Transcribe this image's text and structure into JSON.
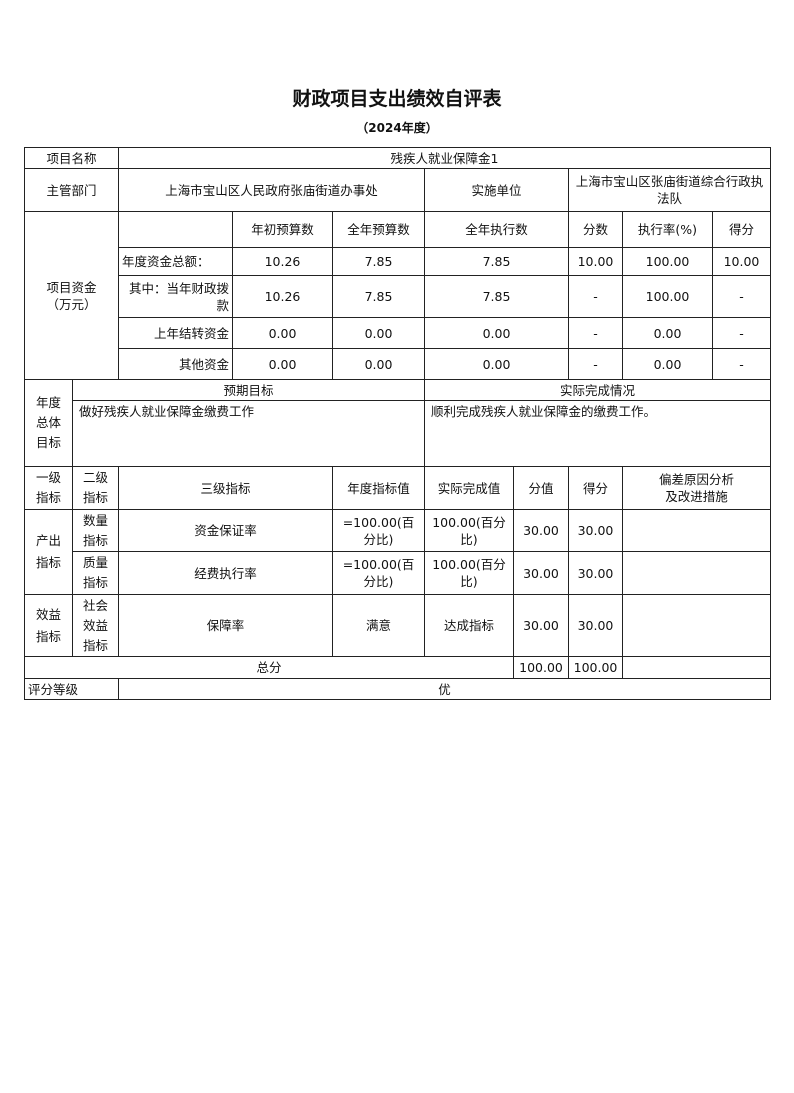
{
  "title": "财政项目支出绩效自评表",
  "subtitle": "（2024年度）",
  "project": {
    "name_label": "项目名称",
    "name": "残疾人就业保障金1",
    "dept_label": "主管部门",
    "dept": "上海市宝山区人民政府张庙街道办事处",
    "impl_label": "实施单位",
    "impl": "上海市宝山区张庙街道综合行政执法队"
  },
  "funds": {
    "label": "项目资金（万元）",
    "headers": [
      "年初预算数",
      "全年预算数",
      "全年执行数",
      "分数",
      "执行率(%)",
      "得分"
    ],
    "rows": [
      {
        "label": "年度资金总额：",
        "values": [
          "10.26",
          "7.85",
          "7.85",
          "10.00",
          "100.00",
          "10.00"
        ]
      },
      {
        "label": "其中：当年财政拨款",
        "values": [
          "10.26",
          "7.85",
          "7.85",
          "-",
          "100.00",
          "-"
        ]
      },
      {
        "label": "上年结转资金",
        "values": [
          "0.00",
          "0.00",
          "0.00",
          "-",
          "0.00",
          "-"
        ]
      },
      {
        "label": "其他资金",
        "values": [
          "0.00",
          "0.00",
          "0.00",
          "-",
          "0.00",
          "-"
        ]
      }
    ]
  },
  "goals": {
    "label": "年度总体目标",
    "expected_label": "预期目标",
    "actual_label": "实际完成情况",
    "expected": "做好残疾人就业保障金缴费工作",
    "actual": "顺利完成残疾人就业保障金的缴费工作。"
  },
  "indicators": {
    "headers": [
      "一级指标",
      "二级指标",
      "三级指标",
      "年度指标值",
      "实际完成值",
      "分值",
      "得分",
      "偏差原因分析及改进措施"
    ],
    "level1": [
      "产出指标",
      "效益指标"
    ],
    "rows": [
      {
        "l2": "数量指标",
        "l3": "资金保证率",
        "target": "=100.00(百分比)",
        "actual": "100.00(百分比)",
        "score_value": "30.00",
        "score": "30.00",
        "note": ""
      },
      {
        "l2": "质量指标",
        "l3": "经费执行率",
        "target": "=100.00(百分比)",
        "actual": "100.00(百分比)",
        "score_value": "30.00",
        "score": "30.00",
        "note": ""
      },
      {
        "l2": "社会效益指标",
        "l3": "保障率",
        "target": "满意",
        "actual": "达成指标",
        "score_value": "30.00",
        "score": "30.00",
        "note": ""
      }
    ],
    "total_label": "总分",
    "total_value": "100.00",
    "total_score": "100.00"
  },
  "grade": {
    "label": "评分等级",
    "value": "优"
  }
}
